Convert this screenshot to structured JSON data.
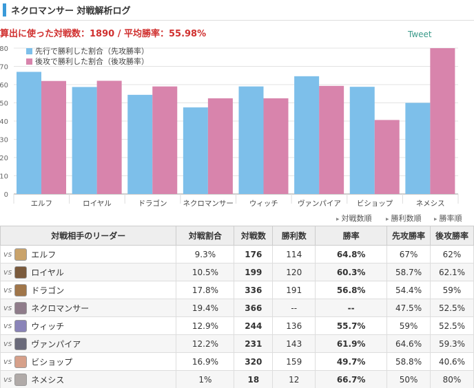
{
  "header": {
    "title": "ネクロマンサー 対戦解析ログ"
  },
  "summary": "算出に使った対戦数：1890 / 平均勝率：55.98%",
  "tweet_label": "Tweet",
  "chart_data": {
    "type": "bar",
    "categories": [
      "エルフ",
      "ロイヤル",
      "ドラゴン",
      "ネクロマンサー",
      "ウィッチ",
      "ヴァンパイア",
      "ビショップ",
      "ネメシス"
    ],
    "series": [
      {
        "name": "先行で勝利した割合（先攻勝率）",
        "color": "#7dbfea",
        "values": [
          67,
          58.7,
          54.4,
          47.5,
          59,
          64.6,
          58.8,
          50
        ]
      },
      {
        "name": "後攻で勝利した割合（後攻勝率）",
        "color": "#d884ac",
        "values": [
          62,
          62.1,
          59,
          52.5,
          52.5,
          59.3,
          40.6,
          80
        ]
      }
    ],
    "ylim": [
      0,
      80
    ],
    "yticks": [
      0,
      10,
      20,
      30,
      40,
      50,
      60,
      70,
      80
    ],
    "grid": true,
    "legend": "top-left"
  },
  "sort_links": [
    "対戦数順",
    "勝利数順",
    "勝率順"
  ],
  "table": {
    "headers": [
      "対戦相手のリーダー",
      "対戦割合",
      "対戦数",
      "勝利数",
      "勝率",
      "先攻勝率",
      "後攻勝率"
    ],
    "vs_label": "vs",
    "rows": [
      {
        "leader": "エルフ",
        "ratio": "9.3%",
        "games": "176",
        "wins": "114",
        "winrate": "64.8%",
        "first": "67%",
        "second": "62%",
        "portrait": "#c9a36b"
      },
      {
        "leader": "ロイヤル",
        "ratio": "10.5%",
        "games": "199",
        "wins": "120",
        "winrate": "60.3%",
        "first": "58.7%",
        "second": "62.1%",
        "portrait": "#7a5a3c"
      },
      {
        "leader": "ドラゴン",
        "ratio": "17.8%",
        "games": "336",
        "wins": "191",
        "winrate": "56.8%",
        "first": "54.4%",
        "second": "59%",
        "portrait": "#a0764a"
      },
      {
        "leader": "ネクロマンサー",
        "ratio": "19.4%",
        "games": "366",
        "wins": "--",
        "winrate": "--",
        "first": "47.5%",
        "second": "52.5%",
        "portrait": "#8f7c8a"
      },
      {
        "leader": "ウィッチ",
        "ratio": "12.9%",
        "games": "244",
        "wins": "136",
        "winrate": "55.7%",
        "first": "59%",
        "second": "52.5%",
        "portrait": "#8a84b8"
      },
      {
        "leader": "ヴァンパイア",
        "ratio": "12.2%",
        "games": "231",
        "wins": "143",
        "winrate": "61.9%",
        "first": "64.6%",
        "second": "59.3%",
        "portrait": "#6a6a7a"
      },
      {
        "leader": "ビショップ",
        "ratio": "16.9%",
        "games": "320",
        "wins": "159",
        "winrate": "49.7%",
        "first": "58.8%",
        "second": "40.6%",
        "portrait": "#d6a08a"
      },
      {
        "leader": "ネメシス",
        "ratio": "1%",
        "games": "18",
        "wins": "12",
        "winrate": "66.7%",
        "first": "50%",
        "second": "80%",
        "portrait": "#b0aaa8"
      }
    ]
  }
}
